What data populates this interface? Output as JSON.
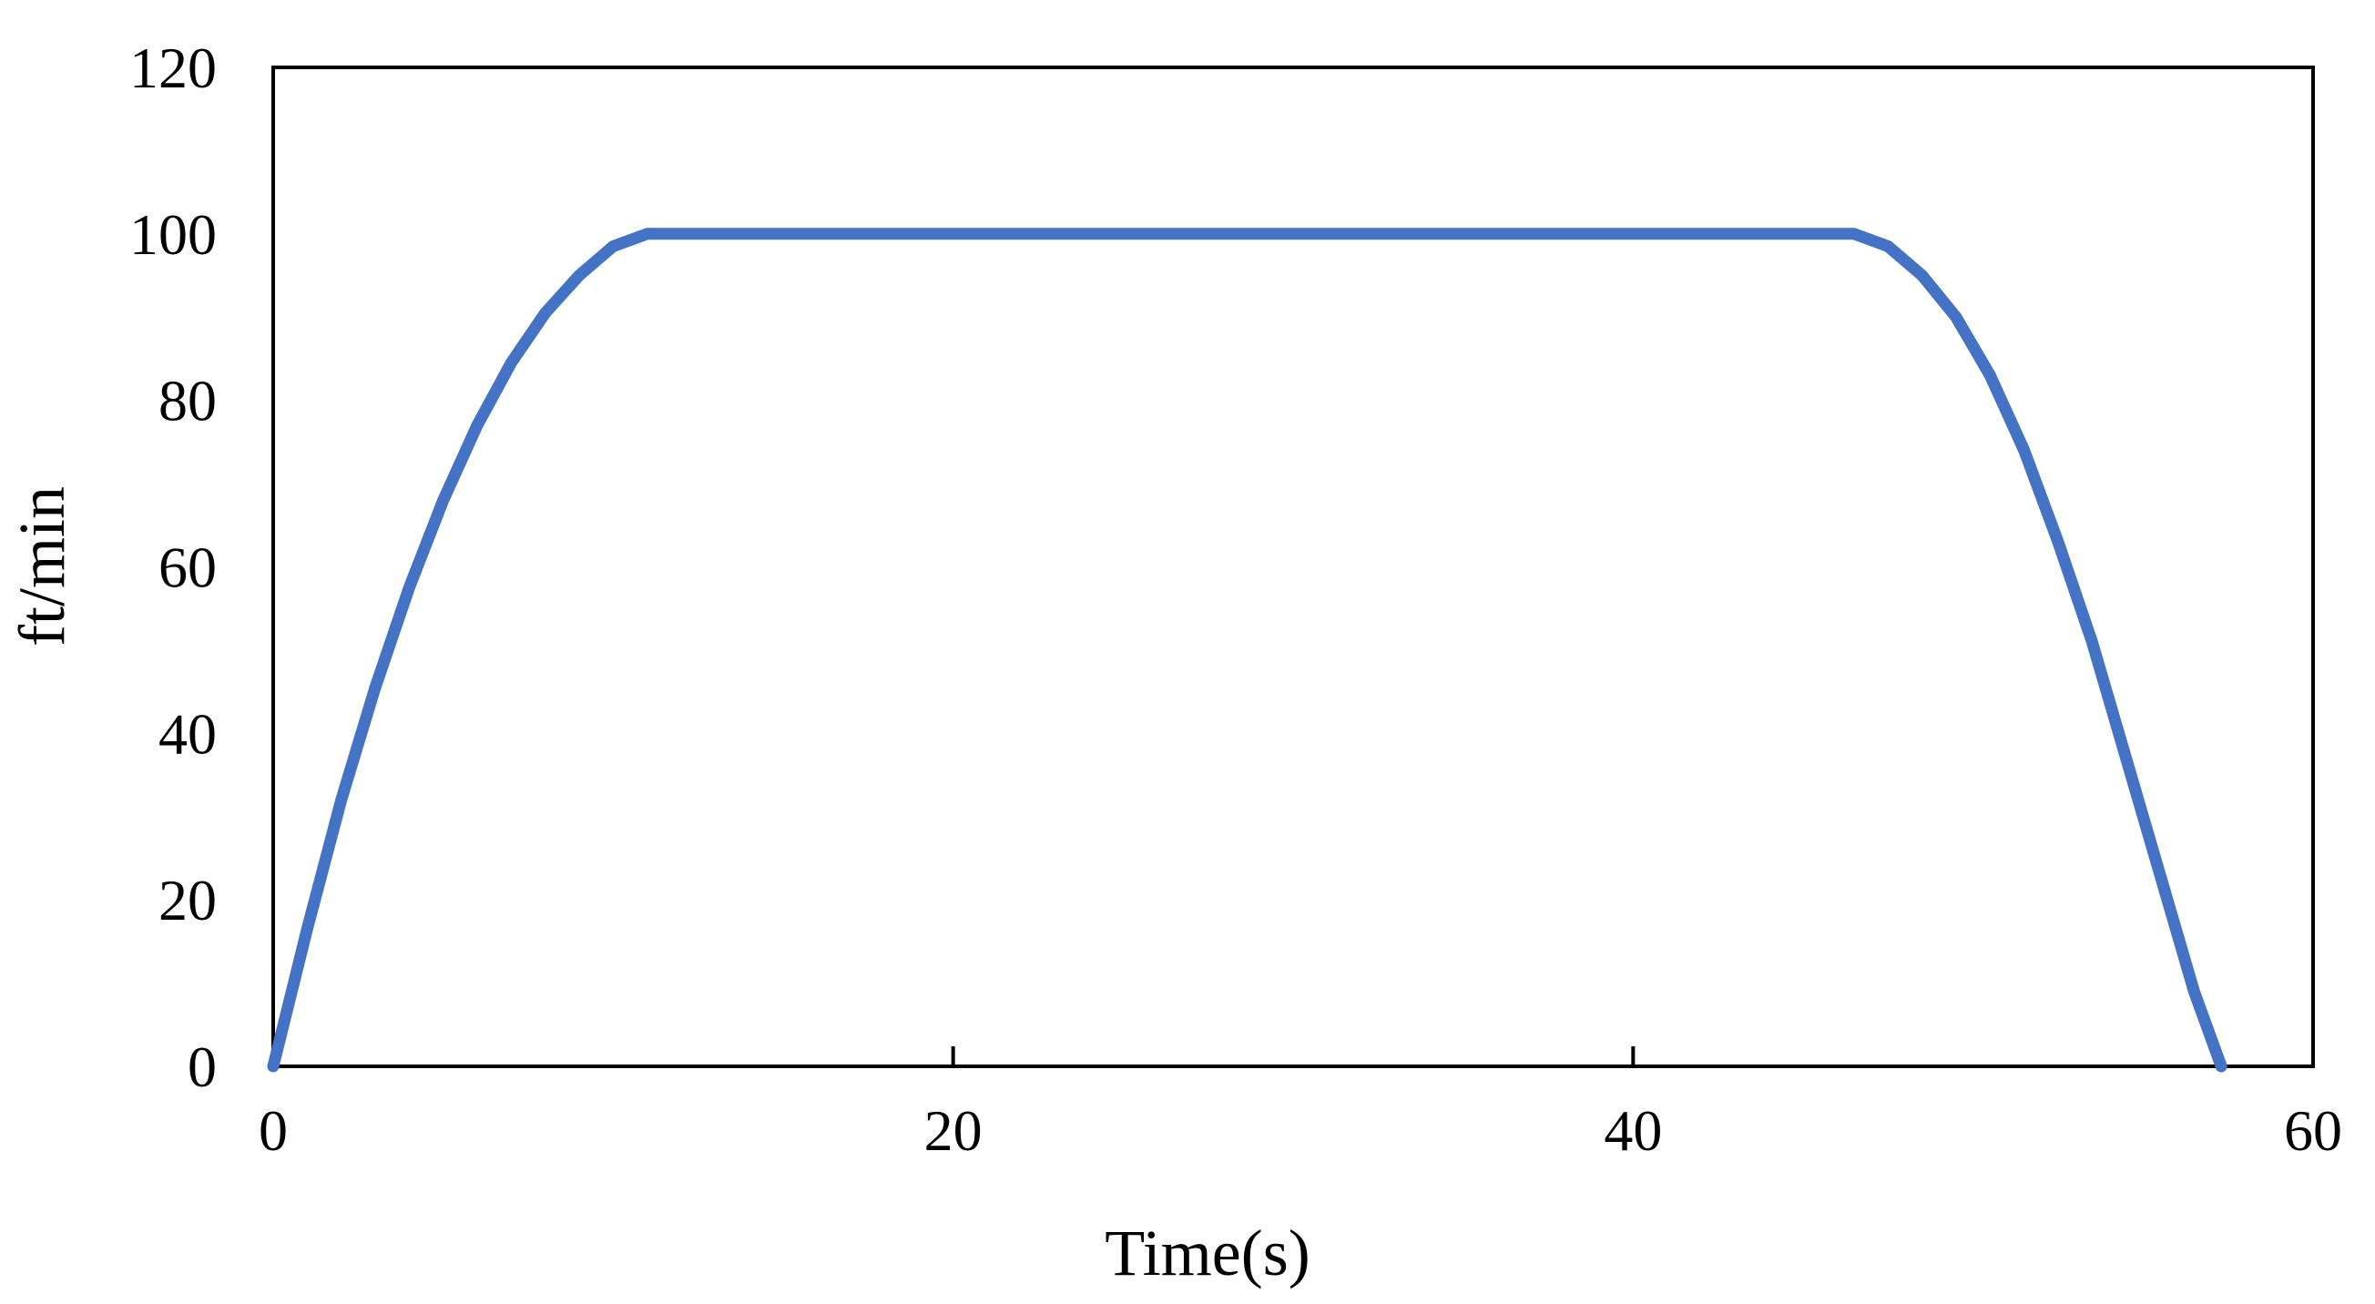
{
  "chart_data": {
    "type": "line",
    "title": "",
    "xlabel": "Time(s)",
    "ylabel": "ft/min",
    "xlim": [
      0,
      60
    ],
    "ylim": [
      0,
      120
    ],
    "x_ticks": [
      0,
      20,
      40,
      60
    ],
    "y_ticks": [
      0,
      20,
      40,
      60,
      80,
      100,
      120
    ],
    "x_tick_labels": [
      "0",
      "20",
      "40",
      "60"
    ],
    "y_tick_labels": [
      "0",
      "20",
      "40",
      "60",
      "80",
      "100",
      "120"
    ],
    "grid": false,
    "legend": "none",
    "series": [
      {
        "color": "#4472C4",
        "x": [
          0,
          1,
          2,
          3,
          4,
          5,
          6,
          7,
          8,
          9,
          10,
          11,
          12,
          16,
          20,
          24,
          28,
          32,
          36,
          40,
          44,
          46.5,
          47.5,
          48.5,
          49.5,
          50.5,
          51.5,
          52.5,
          53.5,
          54.5,
          55.5,
          56.5,
          57.3
        ],
        "y": [
          0,
          16.5,
          32,
          45.5,
          57.5,
          68,
          77,
          84.5,
          90.5,
          95,
          98.5,
          100,
          100,
          100,
          100,
          100,
          100,
          100,
          100,
          100,
          100,
          100,
          98.5,
          95,
          90,
          83,
          74,
          63,
          51,
          37,
          23,
          9,
          0
        ]
      }
    ]
  }
}
